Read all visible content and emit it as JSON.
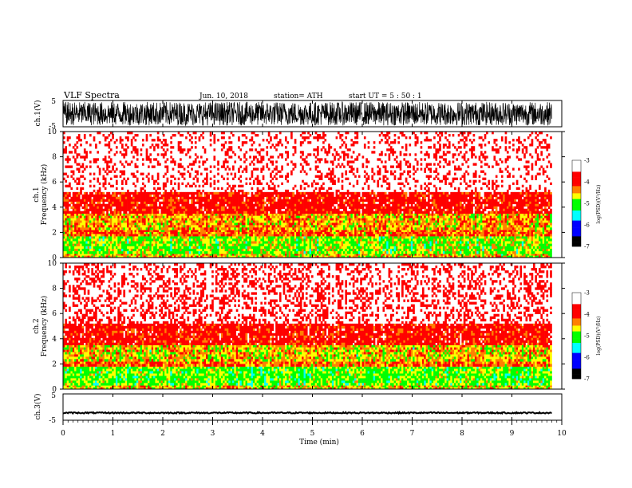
{
  "header": {
    "title": "VLF  Spectra",
    "date": "Jun. 10, 2018",
    "station": "station= ATH",
    "start": "start  UT  =    5  : 50 : 1"
  },
  "chart_data": [
    {
      "type": "line",
      "name_label": "ch.1(V)",
      "ylim": [
        -5,
        5
      ],
      "yticks": [
        "5",
        "-5"
      ],
      "xlim": [
        0,
        10
      ],
      "data_end_min": 9.8,
      "amplitude_v": 4.5,
      "description_values": {
        "y_min": -5,
        "y_max": 5
      }
    },
    {
      "type": "heatmap",
      "channel_label": "ch.1",
      "ylabel": "Frequency  (kHz)",
      "ylim": [
        0,
        10
      ],
      "yticks": [
        "0",
        "2",
        "4",
        "6",
        "8",
        "10"
      ],
      "xlim": [
        0,
        10
      ],
      "data_end_min": 9.8,
      "colorbar": {
        "label": "log(PSD)(V²/Hz)",
        "ticks": [
          "-3",
          "-4",
          "-5",
          "-6",
          "-7"
        ],
        "range": [
          -7,
          -3
        ]
      },
      "bands_khz": [
        {
          "f0": 0.0,
          "f1": 0.3,
          "level": -4.5
        },
        {
          "f0": 0.3,
          "f1": 1.7,
          "level": -4.8
        },
        {
          "f0": 1.7,
          "f1": 2.2,
          "level": -4.2
        },
        {
          "f0": 2.2,
          "f1": 3.5,
          "level": -4.4
        },
        {
          "f0": 3.5,
          "f1": 5.2,
          "level": -3.9
        },
        {
          "f0": 5.2,
          "f1": 10.0,
          "level": -3.3
        }
      ]
    },
    {
      "type": "heatmap",
      "channel_label": "ch.2",
      "ylabel": "Frequency  (kHz)",
      "ylim": [
        0,
        10
      ],
      "yticks": [
        "0",
        "2",
        "4",
        "6",
        "8",
        "10"
      ],
      "xlim": [
        0,
        10
      ],
      "data_end_min": 9.8,
      "colorbar": {
        "label": "log(PSD)(V²/Hz)",
        "ticks": [
          "-3",
          "-4",
          "-5",
          "-6",
          "-7"
        ],
        "range": [
          -7,
          -3
        ]
      },
      "bands_khz": [
        {
          "f0": 0.0,
          "f1": 0.3,
          "level": -4.5
        },
        {
          "f0": 0.3,
          "f1": 1.8,
          "level": -4.9
        },
        {
          "f0": 1.8,
          "f1": 2.2,
          "level": -4.2
        },
        {
          "f0": 2.2,
          "f1": 3.5,
          "level": -4.5
        },
        {
          "f0": 3.5,
          "f1": 5.2,
          "level": -3.9
        },
        {
          "f0": 5.2,
          "f1": 10.0,
          "level": -3.4
        }
      ]
    },
    {
      "type": "line",
      "name_label": "ch.3(V)",
      "ylim": [
        -5,
        5
      ],
      "yticks": [
        "5",
        "-5"
      ],
      "xlim": [
        0,
        10
      ],
      "data_end_min": 9.8,
      "baseline_v": -2.2,
      "xlabel": "Time  (min)",
      "xticks": [
        "0",
        "1",
        "2",
        "3",
        "4",
        "5",
        "6",
        "7",
        "8",
        "9",
        "10"
      ]
    }
  ],
  "colors": {
    "white": "#ffffff",
    "red": "#ff0000",
    "orange": "#ff8000",
    "yellow": "#ffff00",
    "green": "#00ff00",
    "cyan": "#00ffff",
    "blue": "#0000ff",
    "black": "#000000"
  }
}
